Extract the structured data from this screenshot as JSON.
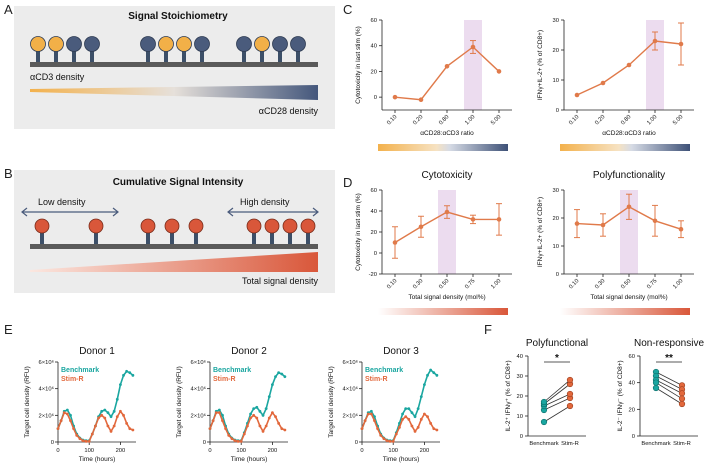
{
  "figure": {
    "panel_letters": [
      "A",
      "B",
      "C",
      "D",
      "E",
      "F"
    ],
    "colors": {
      "orange_receptor": "#f2b048",
      "navy_receptor": "#4a5b7c",
      "red_receptor": "#d9573a",
      "stalk": "#3c4f68",
      "membrane": "#5a5a5a",
      "panel_bg": "#ececec",
      "line_orange": "#e07a4a",
      "highlight": "#ecdcef",
      "teal": "#1aa6a0",
      "stimr": "#e2683c"
    }
  },
  "panel_a": {
    "title": "Signal Stoichiometry",
    "label_cd3": "αCD3 density",
    "label_cd28": "αCD28 density",
    "receptor_groups": [
      [
        "orange",
        "orange",
        "navy",
        "navy"
      ],
      [
        "navy",
        "orange",
        "orange",
        "navy"
      ],
      [
        "navy",
        "orange",
        "navy",
        "navy"
      ]
    ]
  },
  "panel_b": {
    "title": "Cumulative Signal Intensity",
    "label_low": "Low density",
    "label_high": "High density",
    "label_total": "Total signal density"
  },
  "chart_data": [
    {
      "id": "C-left",
      "type": "line",
      "categories": [
        "0.10",
        "0.20",
        "0.80",
        "1.00",
        "5.00"
      ],
      "values": [
        0,
        -2,
        24,
        39,
        20
      ],
      "errors": [
        0,
        0,
        0,
        5,
        0
      ],
      "highlight_category": "1.00",
      "ylim": [
        -10,
        60
      ],
      "yticks": [
        "0",
        "20",
        "40",
        "60"
      ],
      "xlabel": "αCD28:αCD3 ratio",
      "ylabel": "Cytotoxicity in last stim (%)",
      "title": ""
    },
    {
      "id": "C-right",
      "type": "line",
      "categories": [
        "0.10",
        "0.20",
        "0.80",
        "1.00",
        "5.00"
      ],
      "values": [
        5,
        9,
        15,
        23,
        22
      ],
      "errors": [
        0,
        0,
        0,
        3,
        7
      ],
      "highlight_category": "1.00",
      "ylim": [
        0,
        30
      ],
      "yticks": [
        "0",
        "10",
        "20",
        "30"
      ],
      "xlabel": "αCD28:αCD3 ratio",
      "ylabel": "IFNγ+IL-2+ (% of CD8+)",
      "title": ""
    },
    {
      "id": "D-left",
      "type": "line",
      "categories": [
        "0.10",
        "0.30",
        "0.50",
        "0.75",
        "1.00"
      ],
      "values": [
        10,
        25,
        39,
        32,
        32
      ],
      "errors": [
        15,
        10,
        6,
        4,
        15
      ],
      "highlight_category": "0.50",
      "ylim": [
        -20,
        60
      ],
      "yticks": [
        "-20",
        "0",
        "20",
        "40",
        "60"
      ],
      "xlabel": "Total signal density (mol%)",
      "ylabel": "Cytotoxicity in last stim (%)",
      "title": "Cytotoxicity"
    },
    {
      "id": "D-right",
      "type": "line",
      "categories": [
        "0.10",
        "0.30",
        "0.50",
        "0.75",
        "1.00"
      ],
      "values": [
        18,
        17.5,
        24,
        19,
        16
      ],
      "errors": [
        5,
        4,
        4.5,
        5.5,
        3
      ],
      "highlight_category": "0.50",
      "ylim": [
        0,
        30
      ],
      "yticks": [
        "0",
        "10",
        "20",
        "30"
      ],
      "xlabel": "Total signal density (mol%)",
      "ylabel": "IFNγ+IL-2+ (% of CD8+)",
      "title": "Polyfunctionality"
    },
    {
      "id": "E-donor1",
      "type": "scatter",
      "title": "Donor 1",
      "xlabel": "Time (hours)",
      "ylabel": "Target cell density (RFU)",
      "xlim": [
        0,
        250
      ],
      "ylim": [
        0,
        6000000
      ],
      "xticks": [
        "0",
        "100",
        "200"
      ],
      "yticks": [
        "0",
        "2×10⁶",
        "4×10⁶",
        "6×10⁶"
      ],
      "legend": [
        "Benchmark",
        "Stim-R"
      ],
      "series": [
        {
          "name": "Benchmark",
          "points": [
            [
              0,
              1.0
            ],
            [
              10,
              1.6
            ],
            [
              20,
              2.3
            ],
            [
              30,
              2.4
            ],
            [
              40,
              2.0
            ],
            [
              50,
              1.2
            ],
            [
              60,
              0.6
            ],
            [
              70,
              0.3
            ],
            [
              80,
              0.15
            ],
            [
              90,
              0.1
            ],
            [
              100,
              0.1
            ],
            [
              110,
              0.6
            ],
            [
              120,
              1.2
            ],
            [
              130,
              1.9
            ],
            [
              140,
              2.3
            ],
            [
              150,
              2.4
            ],
            [
              160,
              2.2
            ],
            [
              170,
              1.9
            ],
            [
              180,
              2.3
            ],
            [
              190,
              3.2
            ],
            [
              200,
              4.3
            ],
            [
              210,
              5.0
            ],
            [
              220,
              5.3
            ],
            [
              230,
              5.2
            ],
            [
              240,
              5.0
            ]
          ]
        },
        {
          "name": "Stim-R",
          "points": [
            [
              0,
              1.0
            ],
            [
              10,
              1.6
            ],
            [
              20,
              2.2
            ],
            [
              30,
              2.1
            ],
            [
              40,
              1.6
            ],
            [
              50,
              1.0
            ],
            [
              60,
              0.5
            ],
            [
              70,
              0.25
            ],
            [
              80,
              0.1
            ],
            [
              90,
              0.05
            ],
            [
              100,
              0.05
            ],
            [
              110,
              0.6
            ],
            [
              120,
              1.2
            ],
            [
              130,
              1.8
            ],
            [
              140,
              2.0
            ],
            [
              150,
              1.8
            ],
            [
              160,
              1.2
            ],
            [
              170,
              0.8
            ],
            [
              180,
              1.2
            ],
            [
              190,
              1.9
            ],
            [
              200,
              2.3
            ],
            [
              210,
              2.0
            ],
            [
              220,
              1.4
            ],
            [
              230,
              1.0
            ],
            [
              240,
              0.9
            ]
          ]
        }
      ]
    },
    {
      "id": "E-donor2",
      "type": "scatter",
      "title": "Donor 2",
      "xlabel": "Time (hours)",
      "ylabel": "Target cell density (RFU)",
      "xlim": [
        0,
        250
      ],
      "ylim": [
        0,
        6000000
      ],
      "xticks": [
        "0",
        "100",
        "200"
      ],
      "yticks": [
        "0",
        "2×10⁶",
        "4×10⁶",
        "6×10⁶"
      ],
      "legend": [
        "Benchmark",
        "Stim-R"
      ],
      "series": [
        {
          "name": "Benchmark",
          "points": [
            [
              0,
              1.0
            ],
            [
              10,
              1.6
            ],
            [
              20,
              2.3
            ],
            [
              30,
              2.4
            ],
            [
              40,
              2.0
            ],
            [
              50,
              1.2
            ],
            [
              60,
              0.6
            ],
            [
              70,
              0.3
            ],
            [
              80,
              0.15
            ],
            [
              90,
              0.1
            ],
            [
              100,
              0.1
            ],
            [
              110,
              0.7
            ],
            [
              120,
              1.4
            ],
            [
              130,
              2.1
            ],
            [
              140,
              2.5
            ],
            [
              150,
              2.6
            ],
            [
              160,
              2.3
            ],
            [
              170,
              2.0
            ],
            [
              180,
              2.5
            ],
            [
              190,
              3.4
            ],
            [
              200,
              4.3
            ],
            [
              210,
              4.9
            ],
            [
              220,
              5.2
            ],
            [
              230,
              5.1
            ],
            [
              240,
              4.9
            ]
          ]
        },
        {
          "name": "Stim-R",
          "points": [
            [
              0,
              1.0
            ],
            [
              10,
              1.6
            ],
            [
              20,
              2.2
            ],
            [
              30,
              2.2
            ],
            [
              40,
              1.6
            ],
            [
              50,
              1.0
            ],
            [
              60,
              0.5
            ],
            [
              70,
              0.25
            ],
            [
              80,
              0.1
            ],
            [
              90,
              0.05
            ],
            [
              100,
              0.05
            ],
            [
              110,
              0.6
            ],
            [
              120,
              1.2
            ],
            [
              130,
              1.8
            ],
            [
              140,
              2.0
            ],
            [
              150,
              1.8
            ],
            [
              160,
              1.2
            ],
            [
              170,
              0.8
            ],
            [
              180,
              1.2
            ],
            [
              190,
              1.8
            ],
            [
              200,
              2.2
            ],
            [
              210,
              1.9
            ],
            [
              220,
              1.4
            ],
            [
              230,
              1.0
            ],
            [
              240,
              0.9
            ]
          ]
        }
      ]
    },
    {
      "id": "E-donor3",
      "type": "scatter",
      "title": "Donor 3",
      "xlabel": "Time (hours)",
      "ylabel": "Target cell density (RFU)",
      "xlim": [
        0,
        250
      ],
      "ylim": [
        0,
        6000000
      ],
      "xticks": [
        "0",
        "100",
        "200"
      ],
      "yticks": [
        "0",
        "2×10⁶",
        "4×10⁶",
        "6×10⁶"
      ],
      "legend": [
        "Benchmark",
        "Stim-R"
      ],
      "series": [
        {
          "name": "Benchmark",
          "points": [
            [
              0,
              1.0
            ],
            [
              10,
              1.6
            ],
            [
              20,
              2.2
            ],
            [
              30,
              2.3
            ],
            [
              40,
              1.9
            ],
            [
              50,
              1.2
            ],
            [
              60,
              0.6
            ],
            [
              70,
              0.3
            ],
            [
              80,
              0.15
            ],
            [
              90,
              0.1
            ],
            [
              100,
              0.1
            ],
            [
              110,
              0.7
            ],
            [
              120,
              1.4
            ],
            [
              130,
              2.1
            ],
            [
              140,
              2.5
            ],
            [
              150,
              2.5
            ],
            [
              160,
              2.2
            ],
            [
              170,
              1.9
            ],
            [
              180,
              2.5
            ],
            [
              190,
              3.4
            ],
            [
              200,
              4.3
            ],
            [
              210,
              5.0
            ],
            [
              220,
              5.4
            ],
            [
              230,
              5.2
            ],
            [
              240,
              5.0
            ]
          ]
        },
        {
          "name": "Stim-R",
          "points": [
            [
              0,
              1.0
            ],
            [
              10,
              1.6
            ],
            [
              20,
              2.1
            ],
            [
              30,
              2.1
            ],
            [
              40,
              1.6
            ],
            [
              50,
              1.0
            ],
            [
              60,
              0.5
            ],
            [
              70,
              0.25
            ],
            [
              80,
              0.1
            ],
            [
              90,
              0.05
            ],
            [
              100,
              0.05
            ],
            [
              110,
              0.6
            ],
            [
              120,
              1.1
            ],
            [
              130,
              1.7
            ],
            [
              140,
              1.9
            ],
            [
              150,
              1.7
            ],
            [
              160,
              1.2
            ],
            [
              170,
              0.8
            ],
            [
              180,
              1.1
            ],
            [
              190,
              1.7
            ],
            [
              200,
              2.1
            ],
            [
              210,
              1.9
            ],
            [
              220,
              1.4
            ],
            [
              230,
              1.0
            ],
            [
              240,
              0.9
            ]
          ]
        }
      ]
    },
    {
      "id": "F-left",
      "type": "scatter",
      "title": "Polyfunctional",
      "categories": [
        "Benchmark",
        "Stim-R"
      ],
      "ylabel": "IL-2⁺ IFNγ⁺ (% of CD8+)",
      "ylim": [
        0,
        40
      ],
      "yticks": [
        "0",
        "10",
        "20",
        "30",
        "40"
      ],
      "significance": "*",
      "pairs": [
        [
          7,
          15
        ],
        [
          13,
          19
        ],
        [
          15,
          21
        ],
        [
          16,
          26
        ],
        [
          17,
          28
        ]
      ]
    },
    {
      "id": "F-right",
      "type": "scatter",
      "title": "Non-responsive",
      "categories": [
        "Benchmark",
        "Stim-R"
      ],
      "ylabel": "IL-2⁻ IFNγ⁻ (% of CD8+)",
      "ylim": [
        0,
        60
      ],
      "yticks": [
        "0",
        "20",
        "40",
        "60"
      ],
      "significance": "**",
      "pairs": [
        [
          48,
          38
        ],
        [
          45,
          35
        ],
        [
          42,
          32
        ],
        [
          40,
          28
        ],
        [
          36,
          24
        ]
      ]
    }
  ]
}
